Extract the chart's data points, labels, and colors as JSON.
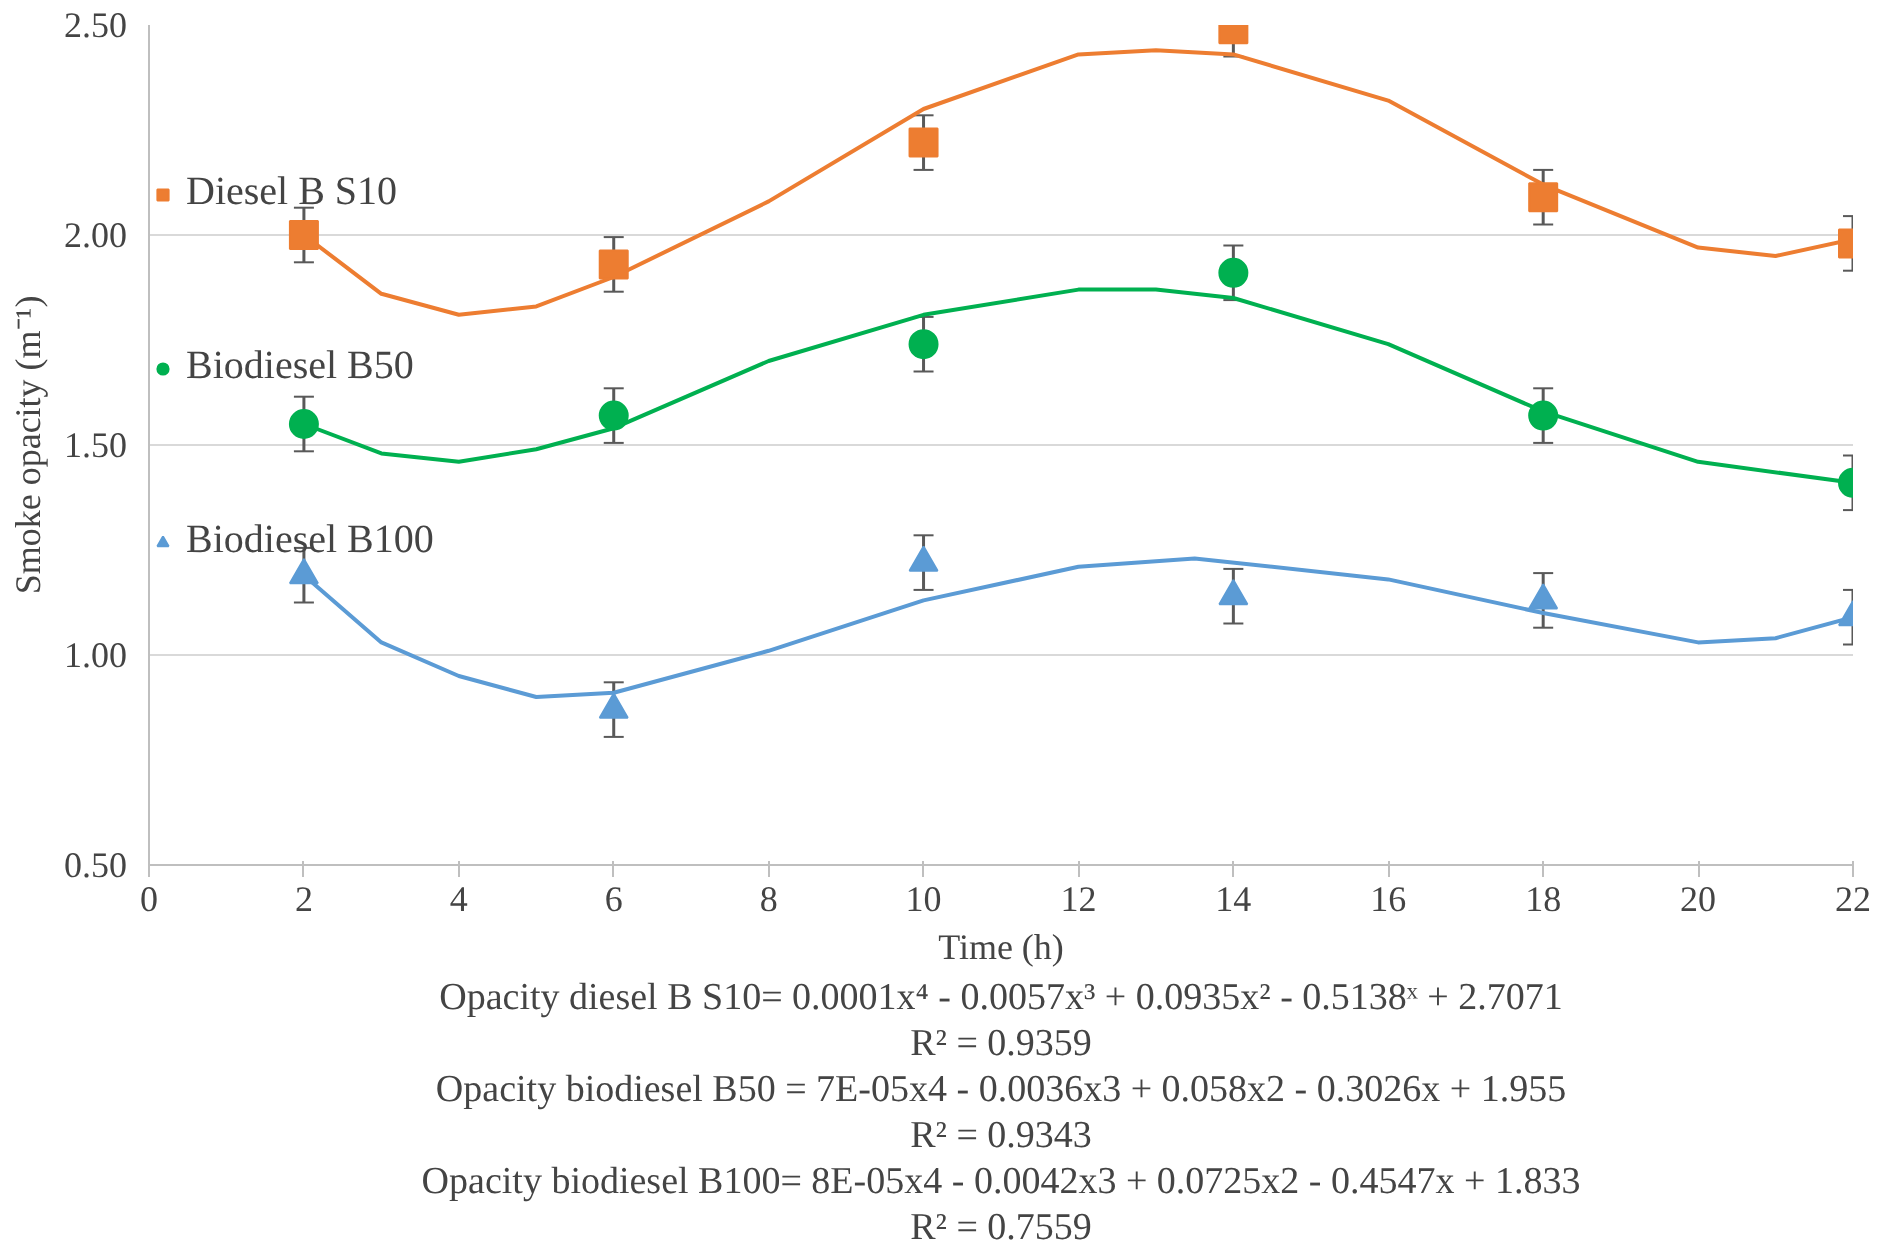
{
  "chart_data": {
    "type": "scatter",
    "xlabel": "Time (h)",
    "ylabel": "Smoke opacity (m⁻¹)",
    "xlim": [
      0,
      22
    ],
    "xticks": [
      0,
      2,
      4,
      6,
      8,
      10,
      12,
      14,
      16,
      18,
      20,
      22
    ],
    "ylim": [
      0.5,
      2.5
    ],
    "yticks": [
      {
        "value": 0.5,
        "label": "0.50"
      },
      {
        "value": 1.0,
        "label": "1.00"
      },
      {
        "value": 1.5,
        "label": "1.50"
      },
      {
        "value": 2.0,
        "label": "2.00"
      },
      {
        "value": 2.5,
        "label": "2.50"
      }
    ],
    "grid": "y",
    "legend": "left",
    "x": [
      2,
      6,
      10,
      14,
      18,
      22
    ],
    "series": [
      {
        "name": "Diesel B S10",
        "color": "#ed7d31",
        "marker": "square",
        "values": [
          2.0,
          1.93,
          2.22,
          2.49,
          2.09,
          1.98
        ],
        "errors": [
          0.065,
          0.065,
          0.065,
          0.065,
          0.065,
          0.065
        ]
      },
      {
        "name": "Biodiesel B50",
        "color": "#00b050",
        "marker": "circle",
        "values": [
          1.55,
          1.57,
          1.74,
          1.91,
          1.57,
          1.41
        ],
        "errors": [
          0.065,
          0.065,
          0.065,
          0.065,
          0.065,
          0.065
        ]
      },
      {
        "name": "Biodiesel B100",
        "color": "#5b9bd5",
        "marker": "triangle",
        "values": [
          1.19,
          0.87,
          1.22,
          1.14,
          1.13,
          1.09
        ],
        "errors": [
          0.065,
          0.065,
          0.065,
          0.065,
          0.065,
          0.065
        ]
      },
      {
        "type": "line",
        "color": "#ed7d31",
        "x": [
          2,
          3,
          4,
          5,
          6,
          8,
          10,
          12,
          13,
          14,
          16,
          18,
          20,
          21,
          22
        ],
        "values": [
          2.0,
          1.86,
          1.81,
          1.83,
          1.9,
          2.08,
          2.3,
          2.43,
          2.44,
          2.43,
          2.32,
          2.12,
          1.97,
          1.95,
          1.99
        ]
      },
      {
        "type": "line",
        "color": "#00b050",
        "x": [
          2,
          3,
          4,
          5,
          6,
          8,
          10,
          12,
          13,
          14,
          16,
          18,
          20,
          22
        ],
        "values": [
          1.55,
          1.48,
          1.46,
          1.49,
          1.54,
          1.7,
          1.81,
          1.87,
          1.87,
          1.85,
          1.74,
          1.58,
          1.46,
          1.41
        ]
      },
      {
        "type": "line",
        "color": "#5b9bd5",
        "x": [
          2,
          3,
          4,
          5,
          6,
          8,
          10,
          12,
          13.5,
          16,
          18,
          20,
          21,
          22
        ],
        "values": [
          1.19,
          1.03,
          0.95,
          0.9,
          0.91,
          1.01,
          1.13,
          1.21,
          1.23,
          1.18,
          1.1,
          1.03,
          1.04,
          1.09
        ]
      }
    ],
    "annotations": [
      "Opacity diesel B S10= 0.0001x⁴ - 0.0057x³ + 0.0935x² - 0.5138ˣ + 2.7071",
      "R² = 0.9359",
      "Opacity biodiesel B50 = 7E-05x4 - 0.0036x3 + 0.058x2 - 0.3026x + 1.955",
      "R² = 0.9343",
      "Opacity biodiesel B100= 8E-05x4 - 0.0042x3 + 0.0725x2 - 0.4547x + 1.833",
      "R² = 0.7559"
    ]
  }
}
